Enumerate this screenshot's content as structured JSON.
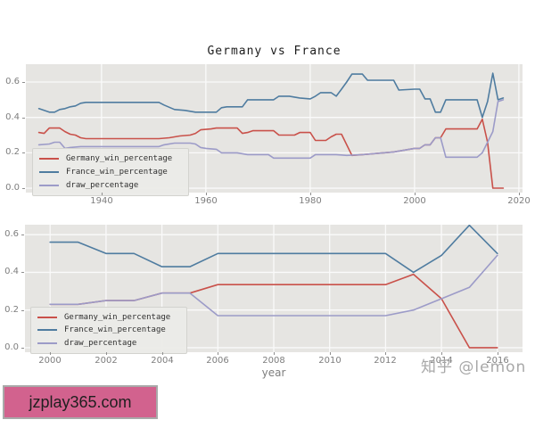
{
  "figure": {
    "title": "Germany vs France",
    "xlabel": "year",
    "watermark": "知乎 @lemon",
    "banner_text": "jzplay365.com"
  },
  "legend": {
    "labels": [
      "Germany_win_percentage",
      "France_win_percentage",
      "draw_percentage"
    ]
  },
  "colors": {
    "germany": "#c9514a",
    "france": "#4f7ca0",
    "draw": "#9c9bc8",
    "plot_bg": "#e6e5e2",
    "grid": "#fafafa",
    "tick_label": "#7e7e7e",
    "banner_bg": "#d2628e",
    "watermark_text": "#a8a8a8"
  },
  "chart_data": [
    {
      "type": "line",
      "title": "Germany vs France",
      "xlabel": "",
      "ylabel": "",
      "xlim": [
        1925.5,
        2020.7
      ],
      "ylim": [
        -0.025,
        0.701
      ],
      "xticks": [
        1940,
        1960,
        1980,
        2000,
        2020
      ],
      "yticks": [
        0.0,
        0.2,
        0.4,
        0.6
      ],
      "grid": true,
      "legend_position": "lower left",
      "series": [
        {
          "name": "Germany_win_percentage",
          "color": "#c9514a",
          "points": [
            [
              1928,
              0.315
            ],
            [
              1929,
              0.31
            ],
            [
              1930,
              0.34
            ],
            [
              1932,
              0.34
            ],
            [
              1933,
              0.32
            ],
            [
              1934,
              0.305
            ],
            [
              1935,
              0.3
            ],
            [
              1936,
              0.285
            ],
            [
              1937,
              0.28
            ],
            [
              1951,
              0.28
            ],
            [
              1953,
              0.285
            ],
            [
              1955,
              0.295
            ],
            [
              1957,
              0.3
            ],
            [
              1958,
              0.31
            ],
            [
              1959,
              0.33
            ],
            [
              1961,
              0.335
            ],
            [
              1962,
              0.34
            ],
            [
              1966,
              0.34
            ],
            [
              1967,
              0.31
            ],
            [
              1968,
              0.315
            ],
            [
              1969,
              0.325
            ],
            [
              1973,
              0.325
            ],
            [
              1974,
              0.3
            ],
            [
              1977,
              0.3
            ],
            [
              1978,
              0.315
            ],
            [
              1980,
              0.315
            ],
            [
              1981,
              0.27
            ],
            [
              1983,
              0.27
            ],
            [
              1984,
              0.29
            ],
            [
              1985,
              0.305
            ],
            [
              1986,
              0.305
            ],
            [
              1988,
              0.185
            ],
            [
              1990,
              0.19
            ],
            [
              1992,
              0.195
            ],
            [
              1994,
              0.2
            ],
            [
              1996,
              0.205
            ],
            [
              1998,
              0.215
            ],
            [
              2000,
              0.225
            ],
            [
              2001,
              0.225
            ],
            [
              2002,
              0.245
            ],
            [
              2003,
              0.245
            ],
            [
              2004,
              0.285
            ],
            [
              2005,
              0.285
            ],
            [
              2006,
              0.335
            ],
            [
              2012,
              0.335
            ],
            [
              2013,
              0.39
            ],
            [
              2014,
              0.26
            ],
            [
              2015,
              0.0
            ],
            [
              2017,
              0.0
            ]
          ]
        },
        {
          "name": "France_win_percentage",
          "color": "#4f7ca0",
          "points": [
            [
              1928,
              0.45
            ],
            [
              1929,
              0.44
            ],
            [
              1930,
              0.43
            ],
            [
              1931,
              0.43
            ],
            [
              1932,
              0.445
            ],
            [
              1933,
              0.45
            ],
            [
              1934,
              0.46
            ],
            [
              1935,
              0.465
            ],
            [
              1936,
              0.48
            ],
            [
              1937,
              0.485
            ],
            [
              1951,
              0.485
            ],
            [
              1952,
              0.47
            ],
            [
              1954,
              0.445
            ],
            [
              1956,
              0.44
            ],
            [
              1958,
              0.43
            ],
            [
              1962,
              0.43
            ],
            [
              1963,
              0.455
            ],
            [
              1964,
              0.46
            ],
            [
              1967,
              0.46
            ],
            [
              1968,
              0.5
            ],
            [
              1973,
              0.5
            ],
            [
              1974,
              0.52
            ],
            [
              1976,
              0.52
            ],
            [
              1978,
              0.51
            ],
            [
              1980,
              0.505
            ],
            [
              1981,
              0.52
            ],
            [
              1982,
              0.54
            ],
            [
              1984,
              0.54
            ],
            [
              1985,
              0.52
            ],
            [
              1986,
              0.56
            ],
            [
              1987,
              0.6
            ],
            [
              1988,
              0.645
            ],
            [
              1990,
              0.645
            ],
            [
              1991,
              0.61
            ],
            [
              1996,
              0.61
            ],
            [
              1997,
              0.555
            ],
            [
              2000,
              0.56
            ],
            [
              2001,
              0.56
            ],
            [
              2002,
              0.505
            ],
            [
              2003,
              0.505
            ],
            [
              2004,
              0.43
            ],
            [
              2005,
              0.43
            ],
            [
              2006,
              0.5
            ],
            [
              2012,
              0.5
            ],
            [
              2013,
              0.4
            ],
            [
              2014,
              0.49
            ],
            [
              2015,
              0.65
            ],
            [
              2016,
              0.5
            ],
            [
              2017,
              0.51
            ]
          ]
        },
        {
          "name": "draw_percentage",
          "color": "#9c9bc8",
          "points": [
            [
              1928,
              0.245
            ],
            [
              1930,
              0.25
            ],
            [
              1931,
              0.26
            ],
            [
              1932,
              0.26
            ],
            [
              1933,
              0.225
            ],
            [
              1934,
              0.23
            ],
            [
              1936,
              0.235
            ],
            [
              1951,
              0.235
            ],
            [
              1952,
              0.245
            ],
            [
              1954,
              0.255
            ],
            [
              1957,
              0.255
            ],
            [
              1958,
              0.25
            ],
            [
              1959,
              0.23
            ],
            [
              1960,
              0.225
            ],
            [
              1962,
              0.22
            ],
            [
              1963,
              0.2
            ],
            [
              1966,
              0.2
            ],
            [
              1968,
              0.19
            ],
            [
              1972,
              0.19
            ],
            [
              1973,
              0.17
            ],
            [
              1980,
              0.17
            ],
            [
              1981,
              0.19
            ],
            [
              1985,
              0.19
            ],
            [
              1987,
              0.185
            ],
            [
              1990,
              0.19
            ],
            [
              1992,
              0.195
            ],
            [
              1994,
              0.2
            ],
            [
              1996,
              0.205
            ],
            [
              1998,
              0.215
            ],
            [
              2000,
              0.225
            ],
            [
              2001,
              0.225
            ],
            [
              2002,
              0.245
            ],
            [
              2003,
              0.245
            ],
            [
              2004,
              0.285
            ],
            [
              2005,
              0.285
            ],
            [
              2006,
              0.175
            ],
            [
              2012,
              0.175
            ],
            [
              2013,
              0.2
            ],
            [
              2014,
              0.26
            ],
            [
              2015,
              0.32
            ],
            [
              2016,
              0.49
            ],
            [
              2017,
              0.5
            ]
          ]
        }
      ]
    },
    {
      "type": "line",
      "title": "",
      "xlabel": "year",
      "ylabel": "",
      "xlim": [
        1999.1,
        2016.9
      ],
      "ylim": [
        -0.024,
        0.653
      ],
      "xticks": [
        2000,
        2002,
        2004,
        2006,
        2008,
        2010,
        2012,
        2014,
        2016
      ],
      "yticks": [
        0.0,
        0.2,
        0.4,
        0.6
      ],
      "grid": true,
      "legend_position": "lower left",
      "x": [
        2000,
        2001,
        2002,
        2003,
        2004,
        2005,
        2006,
        2007,
        2008,
        2009,
        2010,
        2011,
        2012,
        2013,
        2014,
        2015,
        2016
      ],
      "series": [
        {
          "name": "Germany_win_percentage",
          "color": "#c9514a",
          "values": [
            0.23,
            0.23,
            0.25,
            0.25,
            0.29,
            0.29,
            0.335,
            0.335,
            0.335,
            0.335,
            0.335,
            0.335,
            0.335,
            0.39,
            0.26,
            0.0,
            0.0
          ]
        },
        {
          "name": "France_win_percentage",
          "color": "#4f7ca0",
          "values": [
            0.56,
            0.56,
            0.5,
            0.5,
            0.43,
            0.43,
            0.5,
            0.5,
            0.5,
            0.5,
            0.5,
            0.5,
            0.5,
            0.4,
            0.49,
            0.65,
            0.5
          ]
        },
        {
          "name": "draw_percentage",
          "color": "#9c9bc8",
          "values": [
            0.23,
            0.23,
            0.25,
            0.25,
            0.29,
            0.29,
            0.17,
            0.17,
            0.17,
            0.17,
            0.17,
            0.17,
            0.17,
            0.2,
            0.26,
            0.32,
            0.49
          ]
        }
      ]
    }
  ]
}
